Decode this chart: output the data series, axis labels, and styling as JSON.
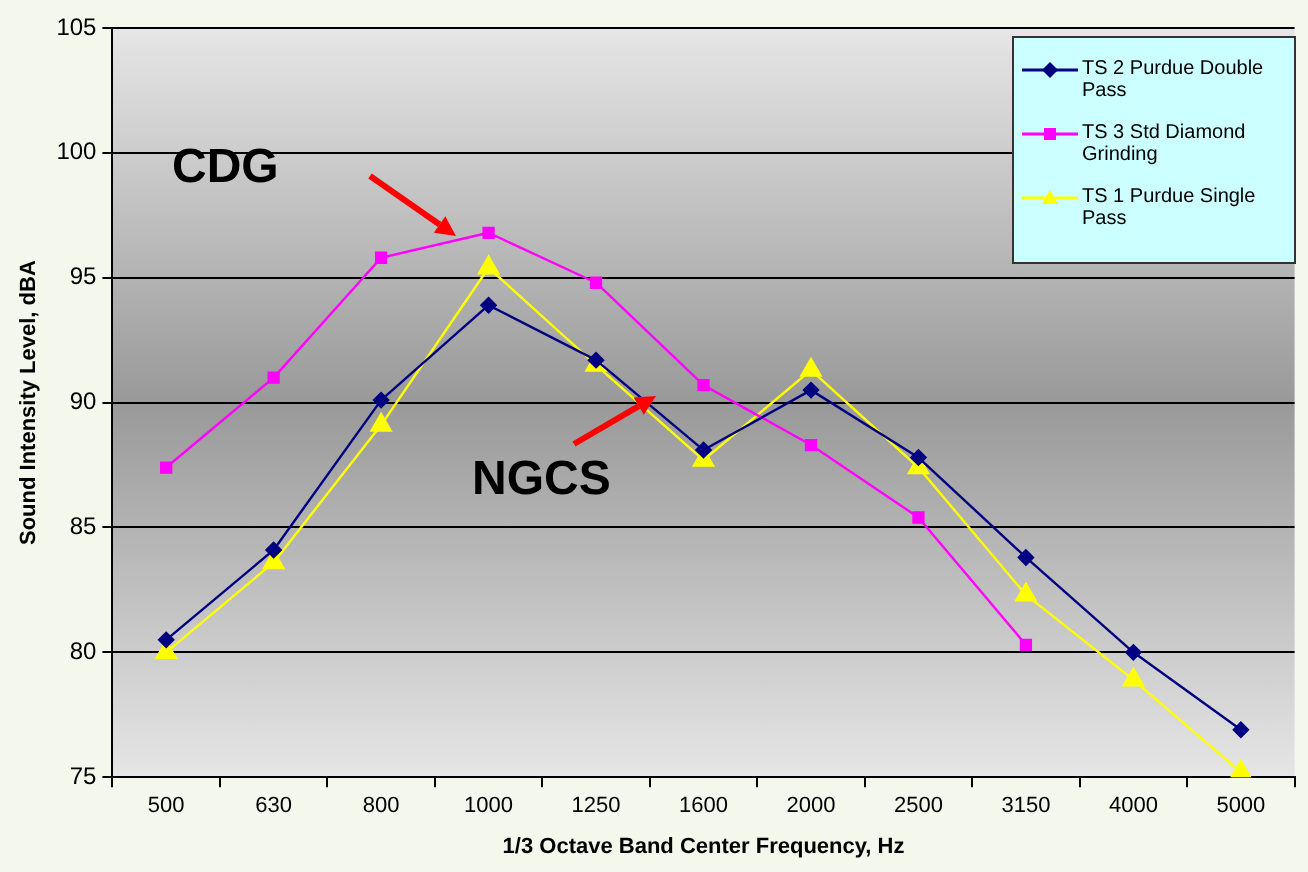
{
  "chart_data": {
    "type": "line",
    "xlabel": "1/3 Octave Band Center Frequency, Hz",
    "ylabel": "Sound Intensity Level, dBA",
    "categories": [
      "500",
      "630",
      "800",
      "1000",
      "1250",
      "1600",
      "2000",
      "2500",
      "3150",
      "4000",
      "5000"
    ],
    "series": [
      {
        "name": "TS 2 Purdue Double Pass",
        "color": "#000080",
        "marker": "diamond",
        "values": [
          80.5,
          84.1,
          90.1,
          93.9,
          91.7,
          88.1,
          90.5,
          87.8,
          83.8,
          80.0,
          76.9
        ]
      },
      {
        "name": "TS 3 Std Diamond Grinding",
        "color": "#ff00ff",
        "marker": "square",
        "values": [
          87.4,
          91.0,
          95.8,
          96.8,
          94.8,
          90.7,
          88.3,
          85.4,
          80.3,
          null,
          null
        ]
      },
      {
        "name": "TS 1 Purdue Single Pass",
        "color": "#ffff00",
        "marker": "triangle",
        "values": [
          80.0,
          83.6,
          89.1,
          95.4,
          91.5,
          87.7,
          91.3,
          87.4,
          82.3,
          78.9,
          75.2
        ]
      }
    ],
    "ylim": [
      75,
      105
    ],
    "yticks": [
      75,
      80,
      85,
      90,
      95,
      100,
      105
    ],
    "grid": "y",
    "legend": "top right",
    "line_style": "solid",
    "annotations": [
      "CDG",
      "NGCS"
    ]
  }
}
